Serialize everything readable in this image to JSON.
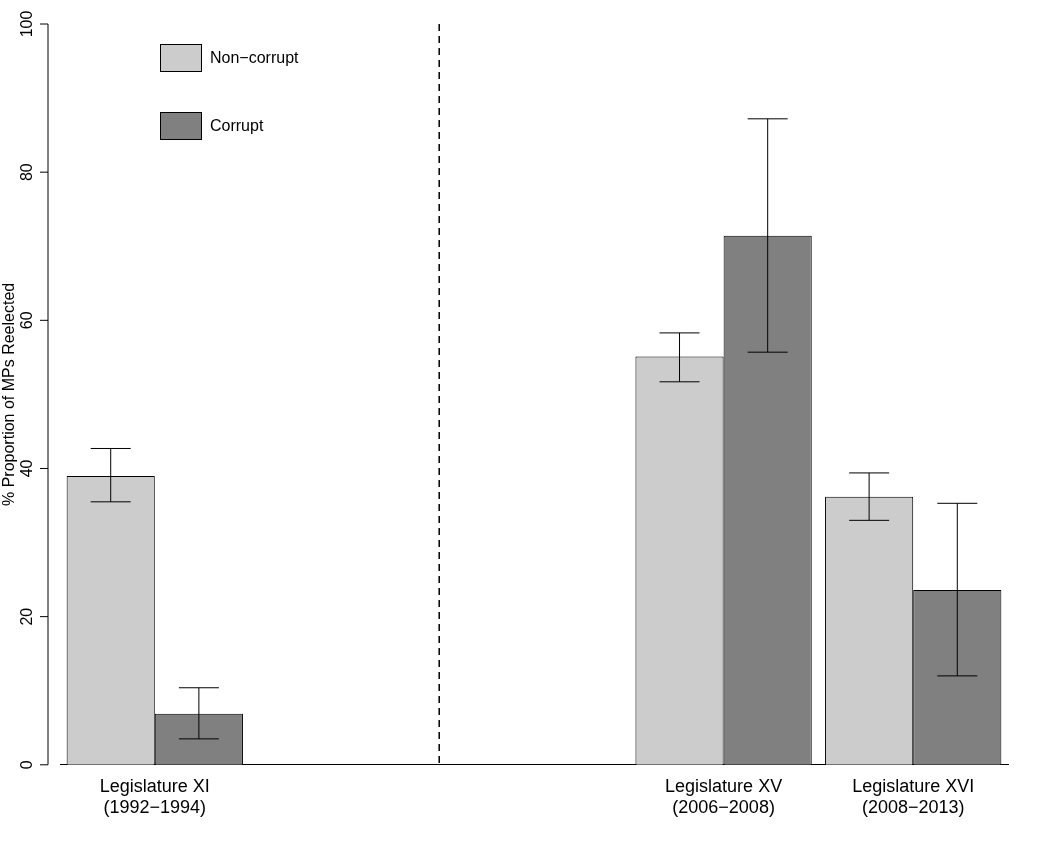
{
  "chart_data": {
    "type": "bar",
    "ylabel": "% Proportion of MPs Reelected",
    "categories": [
      "Legislature XI\n(1992−1994)",
      null,
      null,
      "Legislature XV\n(2006−2008)",
      "Legislature XVI\n(2008−2013)"
    ],
    "series": [
      {
        "name": "Non−corrupt",
        "color": "#cccccc",
        "values": [
          39,
          null,
          null,
          55.1,
          36.2
        ],
        "errors": [
          [
            35.5,
            42.7
          ],
          null,
          null,
          [
            51.7,
            58.3
          ],
          [
            33,
            39.4
          ]
        ]
      },
      {
        "name": "Corrupt",
        "color": "#808080",
        "values": [
          6.9,
          null,
          null,
          71.4,
          23.6
        ],
        "errors": [
          [
            3.5,
            10.4
          ],
          null,
          null,
          [
            55.7,
            87.2
          ],
          [
            12,
            35.3
          ]
        ]
      }
    ],
    "ylim": [
      0,
      100
    ],
    "yticks": [
      0,
      20,
      40,
      60,
      80,
      100
    ],
    "grid": false,
    "legend": "top left"
  }
}
